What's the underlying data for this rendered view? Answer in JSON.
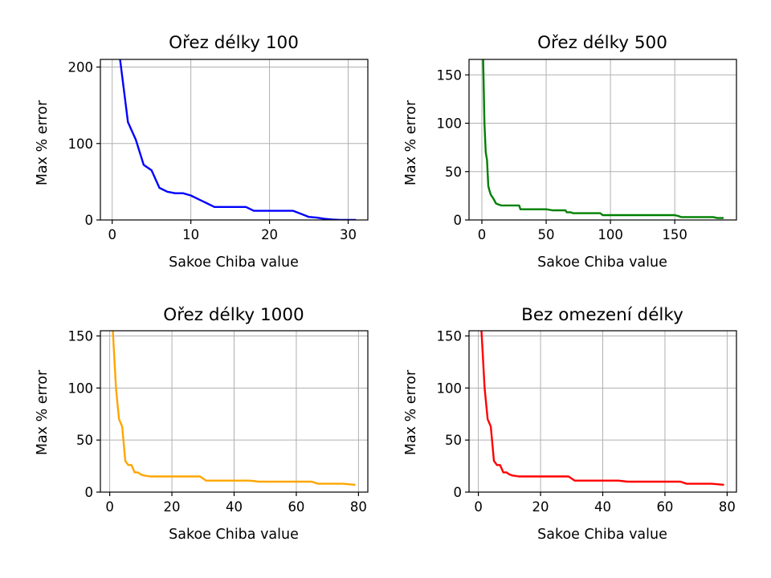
{
  "chart_data": [
    {
      "type": "line",
      "title": "Ořez délky 100",
      "xlabel": "Sakoe Chiba value",
      "ylabel": "Max % error",
      "color": "#0000ff",
      "xlim": [
        -1.5,
        32.5
      ],
      "ylim": [
        0,
        210
      ],
      "xticks": [
        0,
        10,
        20,
        30
      ],
      "yticks": [
        0,
        100,
        200
      ],
      "grid": true,
      "x": [
        1,
        2,
        3,
        4,
        5,
        6,
        7,
        8,
        9,
        10,
        11,
        12,
        13,
        14,
        15,
        16,
        17,
        18,
        19,
        20,
        21,
        22,
        23,
        24,
        25,
        26,
        27,
        28,
        29,
        30,
        31
      ],
      "y": [
        210,
        128,
        105,
        72,
        65,
        42,
        37,
        35,
        35,
        32,
        27,
        22,
        17,
        17,
        17,
        17,
        17,
        12,
        12,
        12,
        12,
        12,
        12,
        8,
        4,
        3,
        1.5,
        0.5,
        0,
        0,
        0
      ]
    },
    {
      "type": "line",
      "title": "Ořez délky 500",
      "xlabel": "Sakoe Chiba value",
      "ylabel": "Max % error",
      "color": "#008000",
      "xlim": [
        -10,
        198
      ],
      "ylim": [
        0,
        166
      ],
      "xticks": [
        0,
        50,
        100,
        150
      ],
      "yticks": [
        0,
        50,
        100,
        150
      ],
      "grid": true,
      "x": [
        1,
        2,
        3,
        4,
        5,
        6,
        7,
        9,
        11,
        13,
        15,
        20,
        29,
        30,
        32,
        50,
        55,
        65,
        66,
        69,
        71,
        80,
        92,
        94,
        100,
        150,
        153,
        155,
        180,
        183,
        188
      ],
      "y": [
        166,
        100,
        70,
        62,
        35,
        30,
        26,
        22,
        17,
        16,
        15,
        15,
        15,
        11,
        11,
        11,
        10,
        10,
        8,
        8,
        7,
        7,
        7,
        5,
        5,
        5,
        4,
        3,
        3,
        2,
        2
      ]
    },
    {
      "type": "line",
      "title": "Ořez délky 1000",
      "xlabel": "Sakoe Chiba value",
      "ylabel": "Max % error",
      "color": "#ffa500",
      "xlim": [
        -3,
        83
      ],
      "ylim": [
        0,
        155
      ],
      "xticks": [
        0,
        20,
        40,
        60,
        80
      ],
      "yticks": [
        0,
        50,
        100,
        150
      ],
      "grid": true,
      "x": [
        1,
        2,
        3,
        4,
        5,
        6,
        7,
        8,
        9,
        10,
        11,
        13,
        15,
        20,
        25,
        29,
        31,
        35,
        45,
        48,
        55,
        65,
        66,
        67,
        70,
        75,
        79
      ],
      "y": [
        155,
        100,
        70,
        63,
        30,
        26,
        26,
        19,
        19,
        17,
        16,
        15,
        15,
        15,
        15,
        15,
        11,
        11,
        11,
        10,
        10,
        10,
        9,
        8,
        8,
        8,
        7
      ]
    },
    {
      "type": "line",
      "title": "Bez omezení délky",
      "xlabel": "Sakoe Chiba value",
      "ylabel": "Max % error",
      "color": "#ff0000",
      "xlim": [
        -3,
        83
      ],
      "ylim": [
        0,
        155
      ],
      "xticks": [
        0,
        20,
        40,
        60,
        80
      ],
      "yticks": [
        0,
        50,
        100,
        150
      ],
      "grid": true,
      "x": [
        1,
        2,
        3,
        4,
        5,
        6,
        7,
        8,
        9,
        10,
        11,
        13,
        15,
        20,
        25,
        29,
        31,
        35,
        45,
        48,
        55,
        65,
        66,
        67,
        70,
        75,
        79
      ],
      "y": [
        155,
        100,
        70,
        63,
        30,
        26,
        26,
        19,
        19,
        17,
        16,
        15,
        15,
        15,
        15,
        15,
        11,
        11,
        11,
        10,
        10,
        10,
        9,
        8,
        8,
        8,
        7
      ]
    }
  ]
}
